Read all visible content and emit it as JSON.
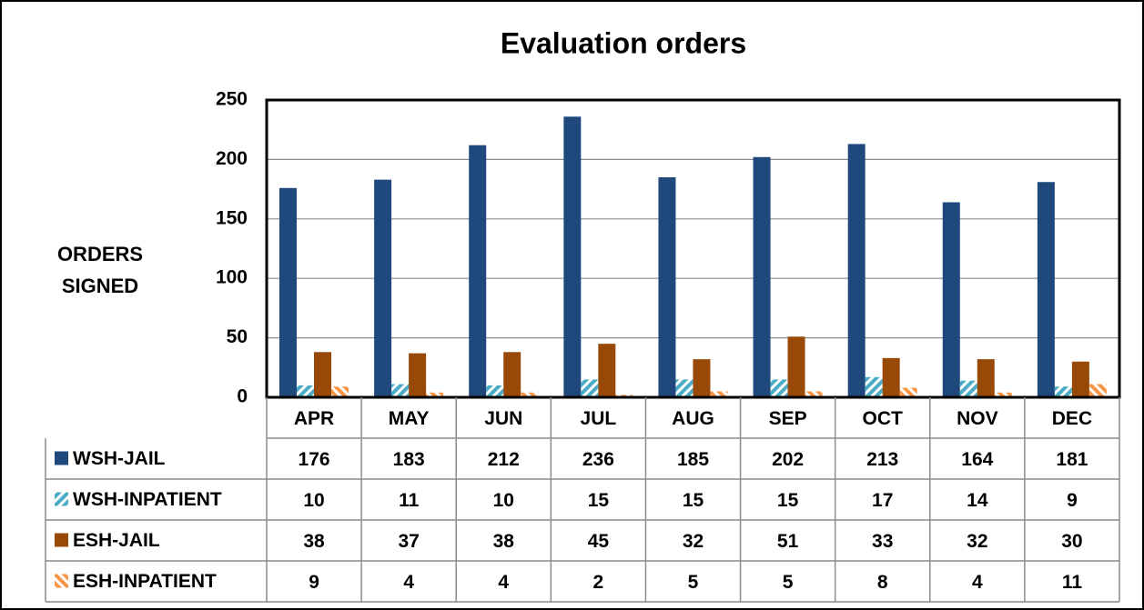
{
  "chart_data": {
    "type": "bar",
    "title": "Evaluation orders",
    "y_label": "ORDERS SIGNED",
    "categories": [
      "APR",
      "MAY",
      "JUN",
      "JUL",
      "AUG",
      "SEP",
      "OCT",
      "NOV",
      "DEC"
    ],
    "series": [
      {
        "name": "WSH-JAIL",
        "color": "#1f497d",
        "pattern": "solid",
        "values": [
          176,
          183,
          212,
          236,
          185,
          202,
          213,
          164,
          181
        ]
      },
      {
        "name": "WSH-INPATIENT",
        "color": "#4bacc6",
        "pattern": "hatch",
        "values": [
          10,
          11,
          10,
          15,
          15,
          15,
          17,
          14,
          9
        ]
      },
      {
        "name": "ESH-JAIL",
        "color": "#984807",
        "pattern": "solid",
        "values": [
          38,
          37,
          38,
          45,
          32,
          51,
          33,
          32,
          30
        ]
      },
      {
        "name": "ESH-INPATIENT",
        "color": "#f79646",
        "pattern": "hatch",
        "values": [
          9,
          4,
          4,
          2,
          5,
          5,
          8,
          4,
          11
        ]
      }
    ],
    "ylim": [
      0,
      250
    ],
    "yticks": [
      0,
      50,
      100,
      150,
      200,
      250
    ],
    "grid": true
  }
}
